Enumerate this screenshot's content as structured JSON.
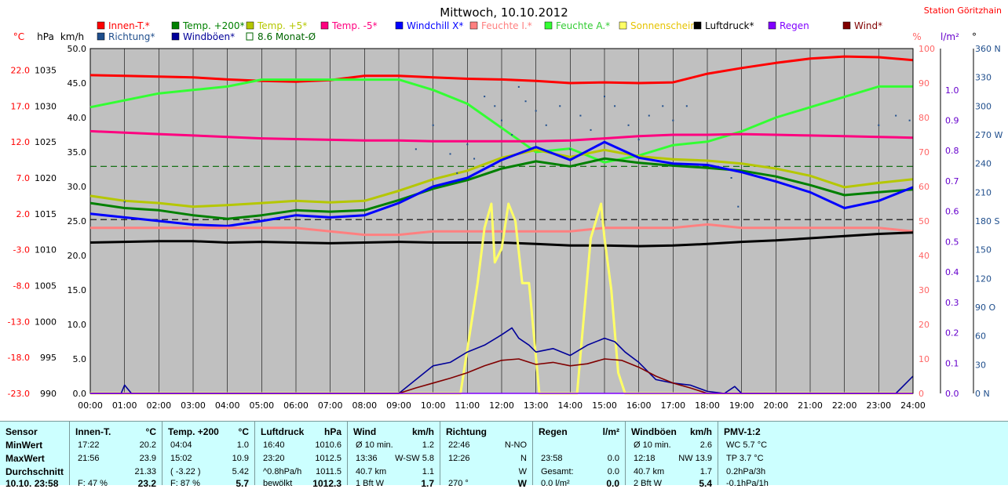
{
  "title": "Mittwoch, 10.10.2012",
  "station": "Station Göritzhain",
  "axes": {
    "left_units": [
      "°C",
      "hPa",
      "km/h"
    ],
    "right_units": [
      "%",
      "l/m²",
      "°"
    ],
    "temp_ticks": [
      "22.0",
      "17.0",
      "12.0",
      "7.0",
      "2.0",
      "-3.0",
      "-8.0",
      "-13.0",
      "-18.0",
      "-23.0"
    ],
    "hpa_ticks": [
      "1035",
      "1030",
      "1025",
      "1020",
      "1015",
      "1010",
      "1005",
      "1000",
      "995",
      "990"
    ],
    "kmh_ticks": [
      "50.0",
      "45.0",
      "40.0",
      "35.0",
      "30.0",
      "25.0",
      "20.0",
      "15.0",
      "10.0",
      "5.0",
      "0.0"
    ],
    "pct_ticks": [
      "100",
      "90",
      "80",
      "70",
      "60",
      "50",
      "40",
      "30",
      "20",
      "10",
      "0"
    ],
    "rain_ticks": [
      "1.0",
      "0.9",
      "0.8",
      "0.7",
      "0.6",
      "0.5",
      "0.4",
      "0.3",
      "0.2",
      "0.1",
      "0.0"
    ],
    "dir_ticks": [
      "360 N",
      "330",
      "300",
      "270 W",
      "240",
      "210",
      "180 S",
      "150",
      "120",
      "90 O",
      "60",
      "30",
      "0 N"
    ],
    "time_ticks": [
      "00:00",
      "01:00",
      "02:00",
      "03:00",
      "04:00",
      "05:00",
      "06:00",
      "07:00",
      "08:00",
      "09:00",
      "10:00",
      "11:00",
      "12:00",
      "13:00",
      "14:00",
      "15:00",
      "16:00",
      "17:00",
      "18:00",
      "19:00",
      "20:00",
      "21:00",
      "22:00",
      "23:00",
      "24:00"
    ]
  },
  "legend": [
    {
      "label": "Innen-T.*",
      "color": "#ff0000"
    },
    {
      "label": "Richtung*",
      "color": "#1f4e8c"
    },
    {
      "label": "Temp. +200*",
      "color": "#008000"
    },
    {
      "label": "Windböen*",
      "color": "#000099"
    },
    {
      "label": "Temp. +5*",
      "color": "#b5c700"
    },
    {
      "label": "8.6 Monat-Ø",
      "color": "#006600"
    },
    {
      "label": "Temp. -5*",
      "color": "#ff007f"
    },
    {
      "label": "Windchill X*",
      "color": "#0000ff"
    },
    {
      "label": "Feuchte I.*",
      "color": "#ff8080"
    },
    {
      "label": "Feuchte A.*",
      "color": "#33ff33"
    },
    {
      "label": "Sonnenschein",
      "color": "#ffff66"
    },
    {
      "label": "Luftdruck*",
      "color": "#000000"
    },
    {
      "label": "Regen",
      "color": "#8000ff"
    },
    {
      "label": "Wind*",
      "color": "#800000"
    }
  ],
  "chart_data": {
    "type": "line",
    "x_range": [
      0,
      24
    ],
    "ylim_temp": [
      -23,
      25
    ],
    "ylim_kmh": [
      0,
      50
    ],
    "ylim_hpa": [
      990,
      1038
    ],
    "ylim_pct": [
      0,
      100
    ],
    "ylim_dir": [
      0,
      360
    ],
    "reference_lines": [
      {
        "name": "8.6 Monat-Ø",
        "temp": 8.6
      },
      {
        "temp": 1.2
      }
    ],
    "series": [
      {
        "name": "Innen-T.*",
        "axis": "temp",
        "color": "#ff0000",
        "x": [
          0,
          1,
          2,
          3,
          4,
          5,
          6,
          7,
          8,
          9,
          10,
          11,
          12,
          13,
          14,
          15,
          16,
          17,
          18,
          19,
          20,
          21,
          22,
          23,
          24
        ],
        "y": [
          21.3,
          21.2,
          21.1,
          21.0,
          20.7,
          20.5,
          20.4,
          20.6,
          21.2,
          21.2,
          21.0,
          20.8,
          20.7,
          20.5,
          20.2,
          20.3,
          20.2,
          20.3,
          21.5,
          22.3,
          23.0,
          23.6,
          23.9,
          23.8,
          23.4
        ]
      },
      {
        "name": "Feuchte A.*",
        "axis": "pct",
        "color": "#33ff33",
        "x": [
          0,
          1,
          2,
          3,
          4,
          5,
          6,
          7,
          8,
          9,
          10,
          11,
          12,
          13,
          14,
          15,
          16,
          17,
          18,
          19,
          20,
          21,
          22,
          23,
          24
        ],
        "y": [
          83,
          85,
          87,
          88,
          89,
          91,
          91,
          91,
          91,
          91,
          88,
          84,
          77,
          70,
          71,
          67,
          69,
          72,
          73,
          76,
          80,
          83,
          86,
          89,
          89
        ]
      },
      {
        "name": "Temp. -5*",
        "axis": "temp",
        "color": "#ff007f",
        "x": [
          0,
          1,
          2,
          3,
          4,
          5,
          6,
          7,
          8,
          9,
          10,
          11,
          12,
          13,
          14,
          15,
          16,
          17,
          18,
          19,
          20,
          21,
          22,
          23,
          24
        ],
        "y": [
          13.5,
          13.3,
          13.1,
          12.9,
          12.7,
          12.5,
          12.4,
          12.3,
          12.2,
          12.2,
          12.1,
          12.1,
          12.1,
          12.1,
          12.2,
          12.5,
          12.8,
          13.0,
          13.0,
          13.1,
          13.0,
          12.9,
          12.8,
          12.7,
          12.6
        ]
      },
      {
        "name": "Temp. +5*",
        "axis": "temp",
        "color": "#b5c700",
        "x": [
          0,
          1,
          2,
          3,
          4,
          5,
          6,
          7,
          8,
          9,
          10,
          11,
          12,
          13,
          14,
          15,
          16,
          17,
          18,
          19,
          20,
          21,
          22,
          23,
          24
        ],
        "y": [
          4.5,
          3.8,
          3.5,
          3.0,
          3.2,
          3.5,
          3.8,
          3.6,
          3.8,
          5.2,
          6.8,
          8.0,
          9.8,
          10.9,
          9.9,
          10.9,
          10.0,
          9.6,
          9.4,
          9.0,
          8.3,
          7.3,
          5.7,
          6.3,
          6.8
        ]
      },
      {
        "name": "Temp. +200*",
        "axis": "temp",
        "color": "#008000",
        "x": [
          0,
          1,
          2,
          3,
          4,
          5,
          6,
          7,
          8,
          9,
          10,
          11,
          12,
          13,
          14,
          15,
          16,
          17,
          18,
          19,
          20,
          21,
          22,
          23,
          24
        ],
        "y": [
          3.5,
          2.8,
          2.5,
          1.8,
          1.3,
          1.8,
          2.5,
          2.3,
          2.5,
          3.9,
          5.5,
          6.7,
          8.3,
          9.3,
          8.6,
          9.7,
          9.1,
          8.7,
          8.4,
          8.0,
          7.2,
          6.0,
          4.6,
          5.0,
          5.4
        ]
      },
      {
        "name": "Windchill X*",
        "axis": "temp",
        "color": "#0000ff",
        "x": [
          0,
          1,
          2,
          3,
          4,
          5,
          6,
          7,
          8,
          9,
          10,
          11,
          12,
          13,
          14,
          15,
          16,
          17,
          18,
          19,
          20,
          21,
          22,
          23,
          24
        ],
        "y": [
          2.0,
          1.5,
          1.0,
          0.5,
          0.3,
          1.0,
          1.8,
          1.5,
          1.8,
          3.5,
          5.8,
          7.0,
          9.5,
          11.3,
          9.5,
          12.0,
          9.8,
          9.0,
          8.8,
          7.8,
          6.5,
          5.0,
          2.8,
          3.8,
          5.7
        ]
      },
      {
        "name": "Feuchte I.*",
        "axis": "pct",
        "color": "#ff8080",
        "x": [
          0,
          1,
          2,
          3,
          4,
          5,
          6,
          7,
          8,
          9,
          10,
          11,
          12,
          13,
          14,
          15,
          16,
          17,
          18,
          19,
          20,
          21,
          22,
          23,
          24
        ],
        "y": [
          48,
          48,
          48,
          48,
          48,
          48,
          48,
          47,
          46,
          46,
          47,
          47,
          47,
          47,
          47,
          48,
          48,
          48,
          49,
          48,
          48,
          48,
          48,
          48,
          47
        ]
      },
      {
        "name": "Luftdruck*",
        "axis": "hpa",
        "color": "#000000",
        "x": [
          0,
          1,
          2,
          3,
          4,
          5,
          6,
          7,
          8,
          9,
          10,
          11,
          12,
          13,
          14,
          15,
          16,
          17,
          18,
          19,
          20,
          21,
          22,
          23,
          24
        ],
        "y": [
          1011.0,
          1011.1,
          1011.2,
          1011.2,
          1011.0,
          1011.1,
          1011.0,
          1010.9,
          1011.0,
          1011.1,
          1011.0,
          1011.0,
          1011.0,
          1010.8,
          1010.6,
          1010.6,
          1010.5,
          1010.6,
          1010.8,
          1011.1,
          1011.3,
          1011.6,
          1011.9,
          1012.2,
          1012.4
        ]
      },
      {
        "name": "Sonnenschein",
        "axis": "pct",
        "color": "#ffff66",
        "x": [
          0,
          10.8,
          11.3,
          11.5,
          11.7,
          11.8,
          12.0,
          12.2,
          12.4,
          12.6,
          12.8,
          13.1,
          13.3,
          13.9,
          14.2,
          14.6,
          14.9,
          15.0,
          15.2,
          15.4,
          15.6,
          16.0,
          24
        ],
        "y": [
          0,
          0,
          32,
          48,
          55,
          38,
          42,
          55,
          50,
          32,
          32,
          0,
          0,
          0,
          0,
          45,
          55,
          45,
          30,
          6,
          0,
          0,
          0
        ]
      },
      {
        "name": "Windböen*",
        "axis": "kmh",
        "color": "#000099",
        "x": [
          0,
          0.9,
          1.0,
          1.2,
          9.0,
          9.5,
          10.0,
          10.5,
          11.0,
          11.5,
          12.0,
          12.3,
          12.5,
          12.8,
          13.0,
          13.5,
          14.0,
          14.5,
          15.0,
          15.3,
          15.6,
          16.0,
          16.5,
          17.0,
          17.5,
          18.0,
          18.5,
          18.8,
          19.0,
          23.5,
          23.8,
          24.0
        ],
        "y": [
          0,
          0,
          1.2,
          0,
          0,
          2.0,
          4.0,
          4.5,
          6.0,
          7.0,
          8.5,
          9.5,
          8.0,
          7.0,
          6.0,
          6.5,
          5.5,
          7.0,
          8.0,
          7.5,
          6.0,
          4.5,
          2.0,
          1.5,
          1.2,
          0.3,
          0,
          1.0,
          0,
          0,
          1.5,
          2.5
        ]
      },
      {
        "name": "Wind*",
        "axis": "kmh",
        "color": "#800000",
        "x": [
          0,
          9.0,
          9.5,
          10.0,
          10.5,
          11.0,
          11.5,
          12.0,
          12.5,
          13.0,
          13.5,
          14.0,
          14.5,
          15.0,
          15.5,
          16.0,
          16.5,
          17.0,
          17.5,
          18.0,
          24
        ],
        "y": [
          0,
          0,
          0.8,
          1.5,
          2.2,
          3.0,
          4.0,
          4.8,
          5.0,
          4.2,
          4.5,
          4.0,
          4.3,
          5.0,
          4.8,
          3.8,
          2.5,
          1.5,
          0.8,
          0,
          0
        ]
      },
      {
        "name": "Regen",
        "axis": "rain",
        "color": "#8000ff",
        "x": [
          0,
          24
        ],
        "y": [
          0,
          0
        ]
      },
      {
        "name": "Richtung*",
        "axis": "dir",
        "color": "#1f4e8c",
        "type": "scatter",
        "points": [
          [
            1.0,
            200
          ],
          [
            9.5,
            255
          ],
          [
            10.0,
            280
          ],
          [
            10.5,
            250
          ],
          [
            10.7,
            230
          ],
          [
            11.0,
            260
          ],
          [
            11.2,
            245
          ],
          [
            11.5,
            310
          ],
          [
            11.8,
            300
          ],
          [
            12.0,
            285
          ],
          [
            12.3,
            270
          ],
          [
            12.5,
            320
          ],
          [
            12.7,
            305
          ],
          [
            13.0,
            295
          ],
          [
            13.3,
            280
          ],
          [
            13.7,
            300
          ],
          [
            14.0,
            255
          ],
          [
            14.3,
            290
          ],
          [
            14.6,
            275
          ],
          [
            15.0,
            310
          ],
          [
            15.3,
            300
          ],
          [
            15.7,
            280
          ],
          [
            16.0,
            265
          ],
          [
            16.3,
            290
          ],
          [
            16.7,
            300
          ],
          [
            17.0,
            285
          ],
          [
            17.4,
            300
          ],
          [
            18.7,
            225
          ],
          [
            18.9,
            195
          ],
          [
            23.0,
            280
          ],
          [
            23.5,
            290
          ],
          [
            23.9,
            285
          ]
        ]
      }
    ]
  },
  "table": [
    {
      "header": [
        "Sensor",
        ""
      ],
      "rows": [
        [
          "MinWert",
          ""
        ],
        [
          "MaxWert",
          ""
        ],
        [
          "Durchschnitt",
          ""
        ],
        [
          "10.10. 23:58",
          ""
        ]
      ]
    },
    {
      "header": [
        "Innen-T.",
        "°C"
      ],
      "rows": [
        [
          "17:22",
          "20.2"
        ],
        [
          "21:56",
          "23.9"
        ],
        [
          "",
          "21.33"
        ],
        [
          "F: 47 %",
          "23.2"
        ]
      ]
    },
    {
      "header": [
        "Temp. +200",
        "°C"
      ],
      "rows": [
        [
          "04:04",
          "1.0"
        ],
        [
          "15:02",
          "10.9"
        ],
        [
          "( -3.22 )",
          "5.42"
        ],
        [
          "F: 87 %",
          "5.7"
        ]
      ]
    },
    {
      "header": [
        "Luftdruck",
        "hPa"
      ],
      "rows": [
        [
          "16:40",
          "1010.6"
        ],
        [
          "23:20",
          "1012.5"
        ],
        [
          "^0.8hPa/h",
          "1011.5"
        ],
        [
          "bewölkt",
          "1012.3"
        ]
      ]
    },
    {
      "header": [
        "Wind",
        "km/h"
      ],
      "rows": [
        [
          "Ø 10 min.",
          "1.2"
        ],
        [
          "13:36",
          "W-SW 5.8"
        ],
        [
          "40.7 km",
          "1.1"
        ],
        [
          "1 Bft W",
          "1.7"
        ]
      ]
    },
    {
      "header": [
        "Richtung",
        ""
      ],
      "rows": [
        [
          "22:46",
          "N-NO"
        ],
        [
          "12:26",
          "N"
        ],
        [
          "",
          "W"
        ],
        [
          "270 °",
          "W"
        ]
      ]
    },
    {
      "header": [
        "Regen",
        "l/m²"
      ],
      "rows": [
        [
          "",
          ""
        ],
        [
          "23:58",
          "0.0"
        ],
        [
          "Gesamt:",
          "0.0"
        ],
        [
          "0.0 l/m²",
          "0.0"
        ]
      ]
    },
    {
      "header": [
        "Windböen",
        "km/h"
      ],
      "rows": [
        [
          "Ø 10 min.",
          "2.6"
        ],
        [
          "12:18",
          "NW 13.9"
        ],
        [
          "40.7 km",
          "1.7"
        ],
        [
          "2 Bft W",
          "5.4"
        ]
      ]
    },
    {
      "header": [
        "PMV-1:2",
        ""
      ],
      "rows": [
        [
          "WC 5.7 °C",
          ""
        ],
        [
          "TP 3.7 °C",
          ""
        ],
        [
          "0.2hPa/3h",
          ""
        ],
        [
          "-0.1hPa/1h",
          ""
        ]
      ]
    }
  ]
}
